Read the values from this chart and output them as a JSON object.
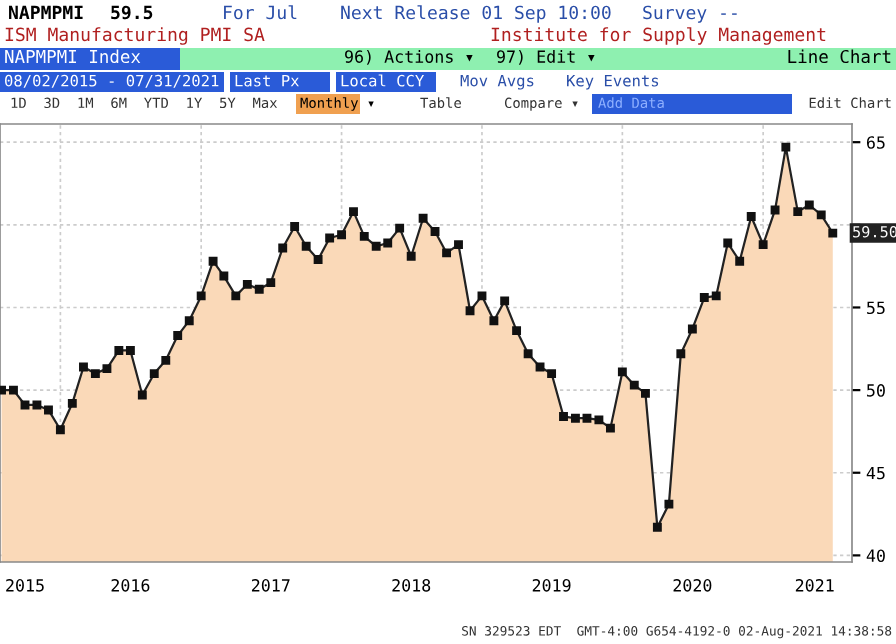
{
  "chart_data": {
    "type": "area",
    "title": "ISM Manufacturing PMI SA",
    "subtitle": "Institute for Supply Management",
    "x": [
      "2015-08",
      "2015-09",
      "2015-10",
      "2015-11",
      "2015-12",
      "2016-01",
      "2016-02",
      "2016-03",
      "2016-04",
      "2016-05",
      "2016-06",
      "2016-07",
      "2016-08",
      "2016-09",
      "2016-10",
      "2016-11",
      "2016-12",
      "2017-01",
      "2017-02",
      "2017-03",
      "2017-04",
      "2017-05",
      "2017-06",
      "2017-07",
      "2017-08",
      "2017-09",
      "2017-10",
      "2017-11",
      "2017-12",
      "2018-01",
      "2018-02",
      "2018-03",
      "2018-04",
      "2018-05",
      "2018-06",
      "2018-07",
      "2018-08",
      "2018-09",
      "2018-10",
      "2018-11",
      "2018-12",
      "2019-01",
      "2019-02",
      "2019-03",
      "2019-04",
      "2019-05",
      "2019-06",
      "2019-07",
      "2019-08",
      "2019-09",
      "2019-10",
      "2019-11",
      "2019-12",
      "2020-01",
      "2020-02",
      "2020-03",
      "2020-04",
      "2020-05",
      "2020-06",
      "2020-07",
      "2020-08",
      "2020-09",
      "2020-10",
      "2020-11",
      "2020-12",
      "2021-01",
      "2021-02",
      "2021-03",
      "2021-04",
      "2021-05",
      "2021-06",
      "2021-07"
    ],
    "series": [
      {
        "color": "#fad9b8",
        "values": [
          50.0,
          50.0,
          49.1,
          49.1,
          48.8,
          47.6,
          49.2,
          51.4,
          51.0,
          51.3,
          52.4,
          52.4,
          49.7,
          51.0,
          51.8,
          53.3,
          54.2,
          55.7,
          57.8,
          56.9,
          55.7,
          56.4,
          56.1,
          56.5,
          58.6,
          59.9,
          58.7,
          57.9,
          59.2,
          59.4,
          60.8,
          59.3,
          58.7,
          58.9,
          59.8,
          58.1,
          60.4,
          59.6,
          58.3,
          58.8,
          54.8,
          55.7,
          54.2,
          55.4,
          53.6,
          52.2,
          51.4,
          51.0,
          48.4,
          48.3,
          48.3,
          48.2,
          47.7,
          51.1,
          50.3,
          49.8,
          41.7,
          43.1,
          52.2,
          53.7,
          55.6,
          55.7,
          58.9,
          57.8,
          60.5,
          58.8,
          60.9,
          64.7,
          60.8,
          61.2,
          60.6,
          59.5
        ]
      }
    ],
    "ylim": [
      39.6,
      66.1
    ],
    "yticks": [
      40,
      45,
      50,
      55,
      {
        "value": 60,
        "label": null
      },
      65
    ],
    "xlim": [
      "2015-07-28",
      "2021-08-20"
    ],
    "xticks": [
      {
        "value": "2015-10-01",
        "label": "2015"
      },
      {
        "value": "2016-01-01",
        "label": null
      },
      {
        "value": "2016-07-01",
        "label": "2016"
      },
      {
        "value": "2017-01-01",
        "label": null
      },
      {
        "value": "2017-07-01",
        "label": "2017"
      },
      {
        "value": "2018-01-01",
        "label": null
      },
      {
        "value": "2018-07-01",
        "label": "2018"
      },
      {
        "value": "2019-01-01",
        "label": null
      },
      {
        "value": "2019-07-01",
        "label": "2019"
      },
      {
        "value": "2020-01-01",
        "label": null
      },
      {
        "value": "2020-07-01",
        "label": "2020"
      },
      {
        "value": "2021-01-01",
        "label": null
      },
      {
        "value": "2021-05-15",
        "label": "2021"
      }
    ],
    "grid": true,
    "marker": "square",
    "line_style": "solid",
    "annotations": [
      "NAPMPMI",
      "59.5",
      "For Jul",
      "Next Release 01 Sep 10:00",
      "Survey --",
      "NAPMPMI Index",
      "96) Actions ▾",
      "97) Edit ▾",
      "Line Chart",
      "08/02/2015 - 07/31/2021",
      "Last Px",
      "Local CCY",
      "Mov Avgs",
      "Key Events",
      "1D  3D  1M  6M  YTD  1Y  5Y  Max",
      "Monthly ▾",
      "Table",
      "Compare ▾",
      "Add Data",
      "Edit Chart",
      "SN 329523 EDT  GMT-4:00 G654-4192-0 02-Aug-2021 14:38:58",
      {
        "text": "59.50",
        "x": "2021-07",
        "y": 59.5
      }
    ]
  }
}
